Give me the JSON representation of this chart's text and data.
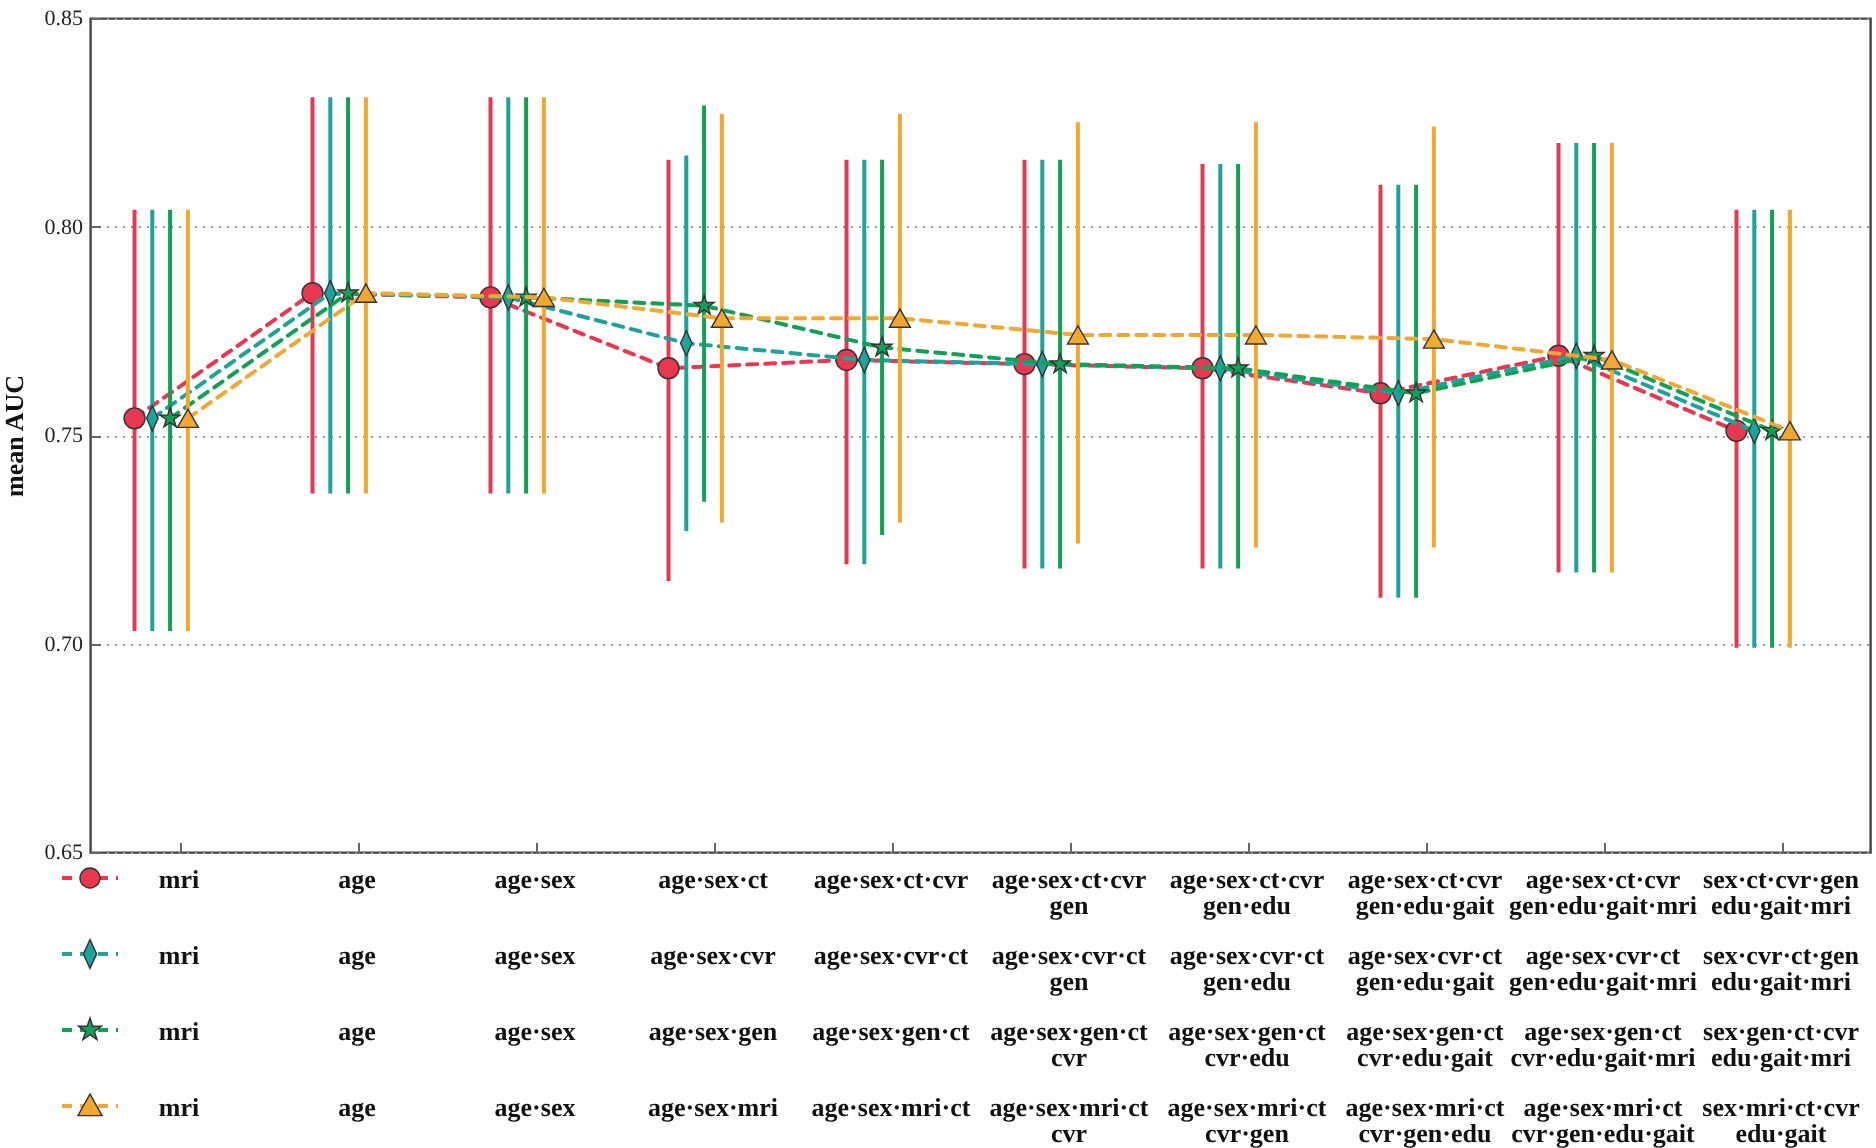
{
  "chart_data": {
    "type": "line",
    "ylabel": "mean AUC",
    "categories": [
      null,
      null,
      null,
      null,
      null,
      null,
      null,
      null,
      null,
      null
    ],
    "ylim": [
      0.65,
      0.85
    ],
    "yticks": [
      0.65,
      {
        "value": 0.7,
        "label": "0.70"
      },
      0.75,
      {
        "value": 0.8,
        "label": "0.80"
      },
      0.85
    ],
    "grid": "y",
    "line_style": "dashed",
    "tick_labels": "y",
    "series": [
      {
        "color": "#e8384f",
        "marker": "circle",
        "values": [
          0.754,
          0.784,
          0.783,
          0.766,
          0.768,
          0.767,
          0.766,
          0.76,
          0.769,
          0.751
        ],
        "errors": [
          [
            0.703,
            0.804
          ],
          [
            0.736,
            0.831
          ],
          [
            0.736,
            0.831
          ],
          [
            0.715,
            0.816
          ],
          [
            0.719,
            0.816
          ],
          [
            0.718,
            0.816
          ],
          [
            0.718,
            0.815
          ],
          [
            0.711,
            0.81
          ],
          [
            0.717,
            0.82
          ],
          [
            0.699,
            0.804
          ]
        ]
      },
      {
        "color": "#1ba39c",
        "marker": "diamond",
        "values": [
          0.754,
          0.784,
          0.783,
          0.772,
          0.768,
          0.767,
          0.766,
          0.76,
          0.769,
          0.751
        ],
        "errors": [
          [
            0.703,
            0.804
          ],
          [
            0.736,
            0.831
          ],
          [
            0.736,
            0.831
          ],
          [
            0.727,
            0.817
          ],
          [
            0.719,
            0.816
          ],
          [
            0.718,
            0.816
          ],
          [
            0.718,
            0.815
          ],
          [
            0.711,
            0.81
          ],
          [
            0.717,
            0.82
          ],
          [
            0.699,
            0.804
          ]
        ]
      },
      {
        "color": "#12a055",
        "marker": "star",
        "values": [
          0.754,
          0.784,
          0.783,
          0.781,
          0.771,
          0.767,
          0.766,
          0.76,
          0.769,
          0.751
        ],
        "errors": [
          [
            0.703,
            0.804
          ],
          [
            0.736,
            0.831
          ],
          [
            0.736,
            0.831
          ],
          [
            0.734,
            0.829
          ],
          [
            0.726,
            0.816
          ],
          [
            0.718,
            0.816
          ],
          [
            0.718,
            0.815
          ],
          [
            0.711,
            0.81
          ],
          [
            0.717,
            0.82
          ],
          [
            0.699,
            0.804
          ]
        ]
      },
      {
        "color": "#f0a830",
        "marker": "triangle",
        "values": [
          0.754,
          0.784,
          0.783,
          0.778,
          0.778,
          0.774,
          0.774,
          0.773,
          0.768,
          0.751
        ],
        "errors": [
          [
            0.703,
            0.804
          ],
          [
            0.736,
            0.831
          ],
          [
            0.736,
            0.831
          ],
          [
            0.729,
            0.827
          ],
          [
            0.729,
            0.827
          ],
          [
            0.724,
            0.825
          ],
          [
            0.723,
            0.825
          ],
          [
            0.723,
            0.824
          ],
          [
            0.717,
            0.82
          ],
          [
            0.699,
            0.804
          ]
        ]
      }
    ],
    "annotations": [
      "mri",
      "age",
      "age·sex",
      "age·sex·ct",
      "age·sex·ct·cvr",
      "age·sex·ct·cvr\ngen",
      "age·sex·ct·cvr\ngen·edu",
      "age·sex·ct·cvr\ngen·edu·gait",
      "age·sex·ct·cvr\ngen·edu·gait·mri",
      "sex·ct·cvr·gen\nedu·gait·mri",
      "mri",
      "age",
      "age·sex",
      "age·sex·cvr",
      "age·sex·cvr·ct",
      "age·sex·cvr·ct\ngen",
      "age·sex·cvr·ct\ngen·edu",
      "age·sex·cvr·ct\ngen·edu·gait",
      "age·sex·cvr·ct\ngen·edu·gait·mri",
      "sex·cvr·ct·gen\nedu·gait·mri",
      "mri",
      "age",
      "age·sex",
      "age·sex·gen",
      "age·sex·gen·ct",
      "age·sex·gen·ct\ncvr",
      "age·sex·gen·ct\ncvr·edu",
      "age·sex·gen·ct\ncvr·edu·gait",
      "age·sex·gen·ct\ncvr·edu·gait·mri",
      "sex·gen·ct·cvr\nedu·gait·mri",
      "mri",
      "age",
      "age·sex",
      "age·sex·mri",
      "age·sex·mri·ct",
      "age·sex·mri·ct\ncvr",
      "age·sex·mri·ct\ncvr·gen",
      "age·sex·mri·ct\ncvr·gen·edu",
      "age·sex·mri·ct\ncvr·gen·edu·gait",
      "sex·mri·ct·cvr\nedu·gait"
    ]
  }
}
